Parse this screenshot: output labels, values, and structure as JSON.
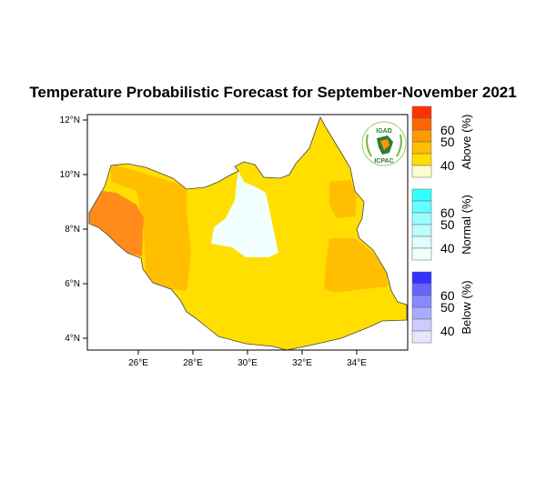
{
  "title": "Temperature Probabilistic Forecast for September-November 2021",
  "logo": {
    "top_text": "IGAD",
    "bottom_text": "ICPAC"
  },
  "axes": {
    "lon_ticks": [
      "26°E",
      "28°E",
      "30°E",
      "32°E",
      "34°E"
    ],
    "lat_ticks": [
      "12°N",
      "10°N",
      "8°N",
      "6°N",
      "4°N"
    ]
  },
  "colorbar": {
    "groups": [
      {
        "label": "Above (%)",
        "ticks": [
          "60",
          "50",
          "40"
        ],
        "colors": [
          "#ff3300",
          "#ff6600",
          "#ff9900",
          "#ffbf00",
          "#ffde00",
          "#fffccc"
        ]
      },
      {
        "label": "Normal (%)",
        "ticks": [
          "60",
          "50",
          "40"
        ],
        "colors": [
          "#33ffff",
          "#66ffff",
          "#99ffff",
          "#bbffff",
          "#ddffff",
          "#f2ffff"
        ]
      },
      {
        "label": "Below (%)",
        "ticks": [
          "60",
          "50",
          "40"
        ],
        "colors": [
          "#3333ff",
          "#6666ff",
          "#8888ff",
          "#aaaaff",
          "#ccccff",
          "#e6e6ff"
        ]
      }
    ]
  },
  "regions": [
    {
      "name": "main-above-40-45",
      "color": "#ffde00"
    },
    {
      "name": "northwest-above-45-50",
      "color": "#ffbf00"
    },
    {
      "name": "west-above-55-60",
      "color": "#ff8c1a"
    },
    {
      "name": "east-above-45-50",
      "color": "#ffbf00"
    },
    {
      "name": "northeast-above-45-50",
      "color": "#ffbf00"
    },
    {
      "name": "central-normal-40",
      "color": "#f2ffff"
    }
  ]
}
